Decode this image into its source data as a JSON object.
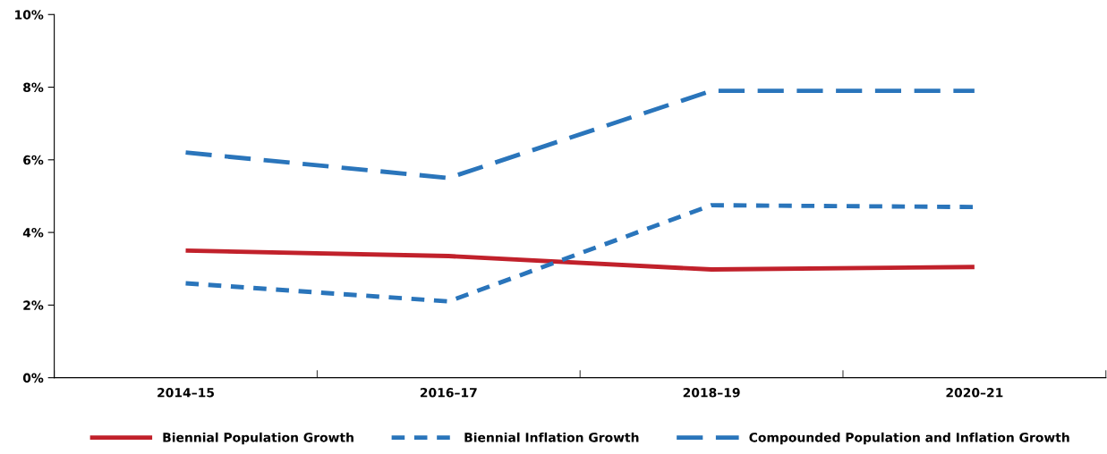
{
  "chart_data": {
    "type": "line",
    "categories": [
      "2014–15",
      "2016–17",
      "2018–19",
      "2020–21"
    ],
    "series": [
      {
        "name": "Biennial Population Growth",
        "color": "#c1212b",
        "values": [
          3.5,
          3.35,
          2.98,
          3.05
        ],
        "line_style": "solid"
      },
      {
        "name": "Biennial Inflation Growth",
        "color": "#2a75bb",
        "values": [
          2.6,
          2.1,
          4.75,
          4.7
        ],
        "line_style": "dotted"
      },
      {
        "name": "Compounded Population and Inflation Growth",
        "color": "#2a75bb",
        "values": [
          6.2,
          5.5,
          7.9,
          7.9
        ],
        "line_style": "dashed"
      }
    ],
    "ylim": [
      0,
      10
    ],
    "yticks": [
      {
        "value": 0,
        "label": "0%"
      },
      {
        "value": 2,
        "label": "2%"
      },
      {
        "value": 4,
        "label": "4%"
      },
      {
        "value": 6,
        "label": "6%"
      },
      {
        "value": 8,
        "label": "8%"
      },
      {
        "value": 10,
        "label": "10%"
      }
    ],
    "grid": false,
    "legend": "bottom",
    "marker": "none"
  }
}
